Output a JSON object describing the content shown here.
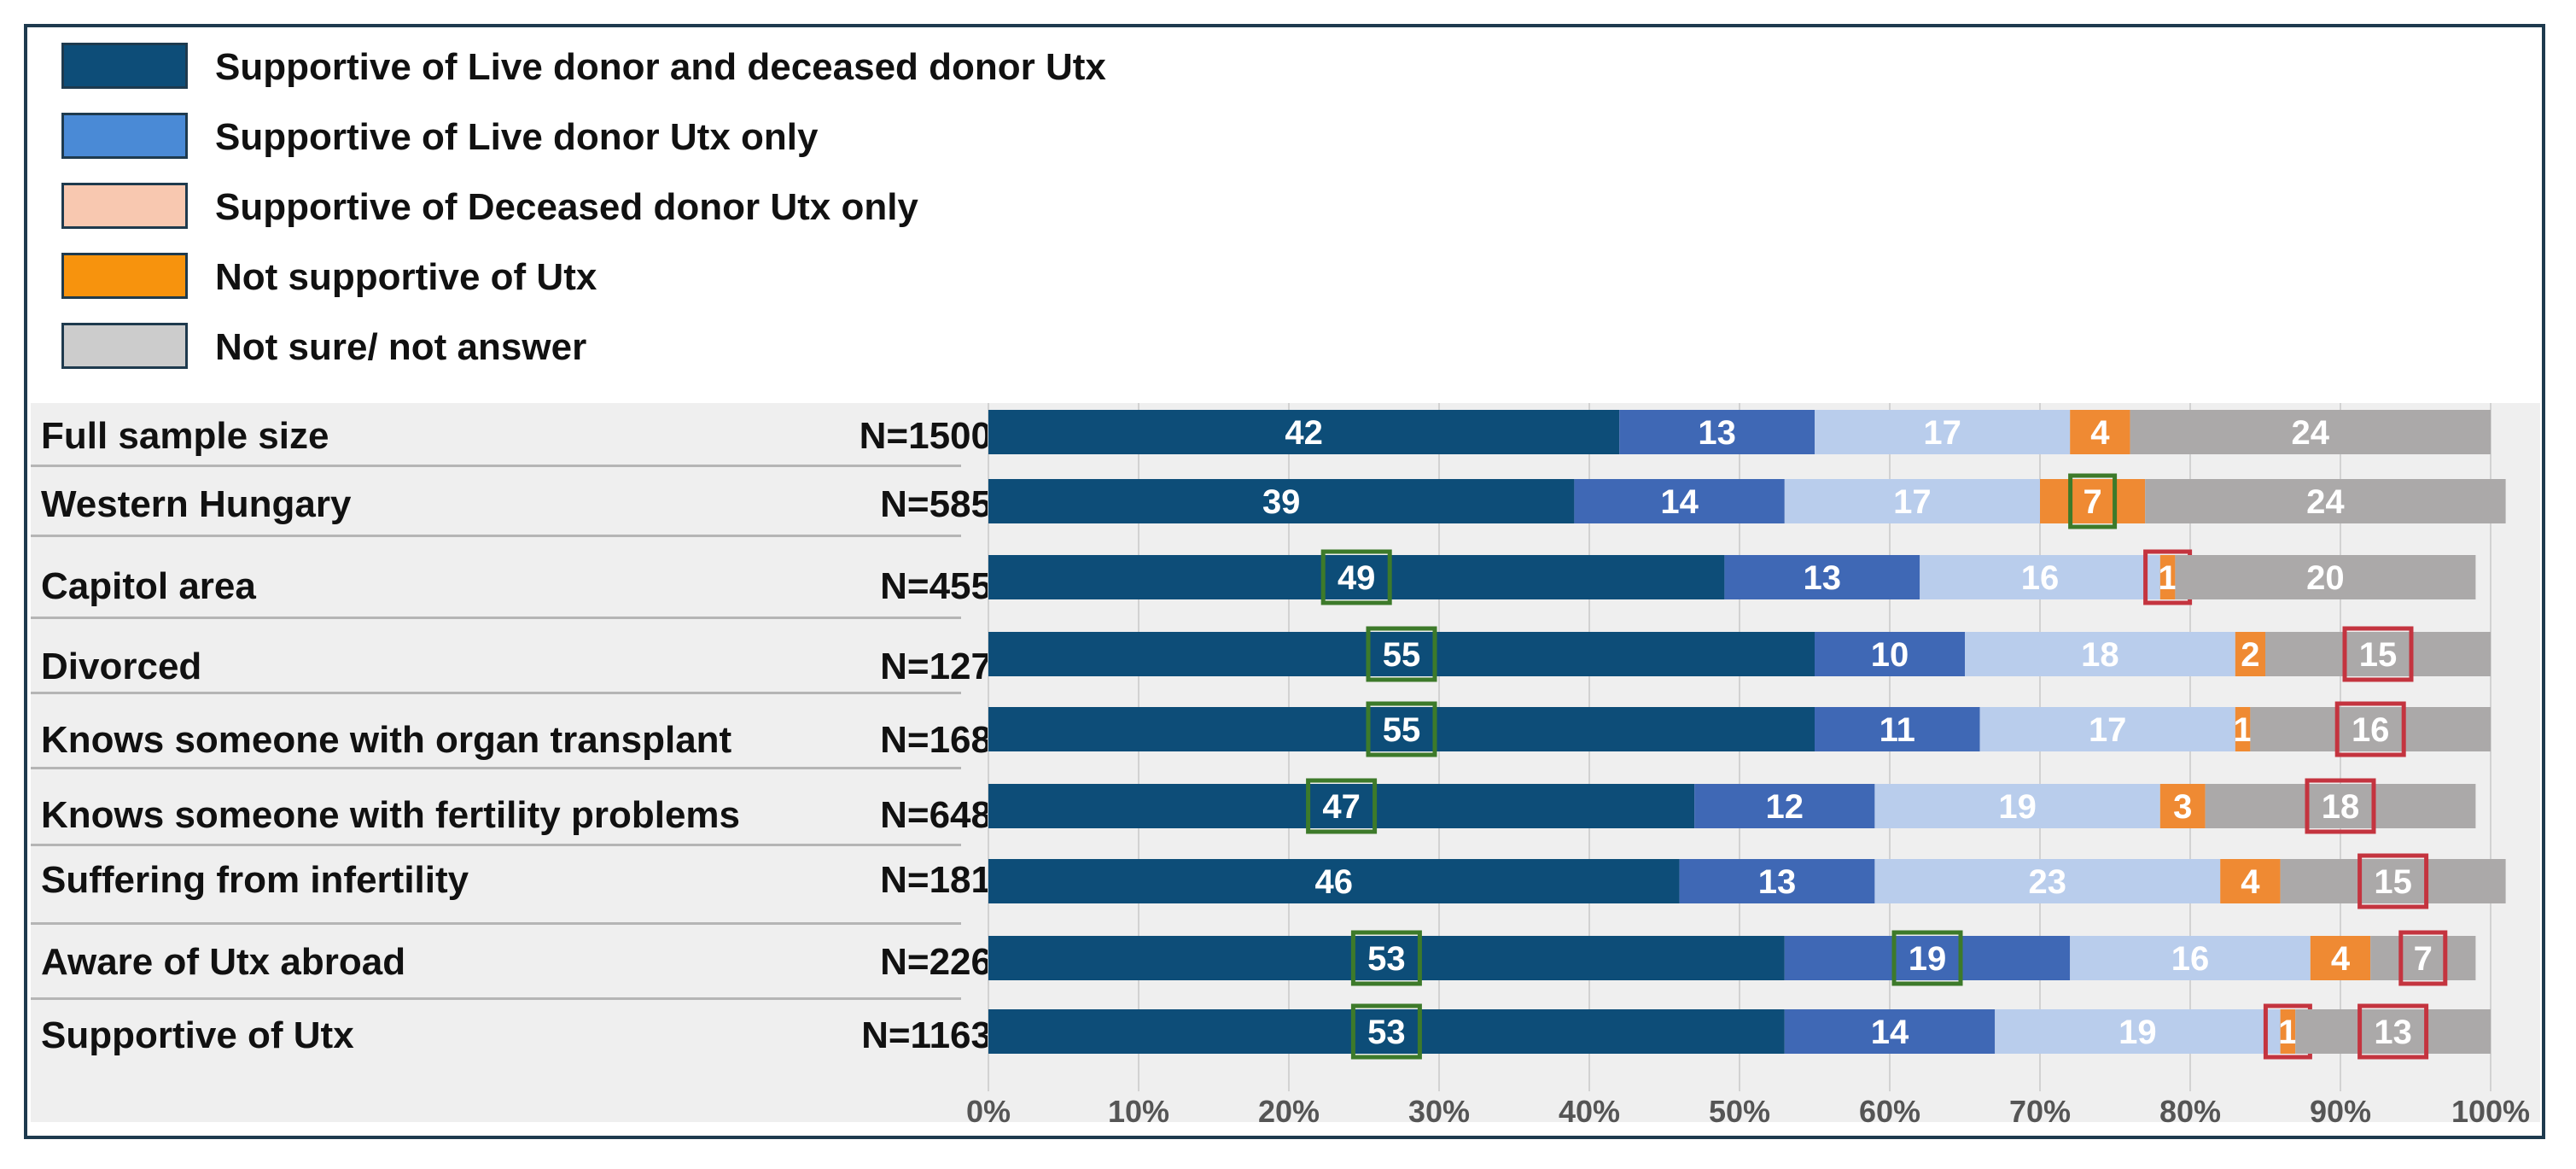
{
  "chart_data": {
    "type": "bar",
    "orientation": "horizontal",
    "stacked": true,
    "xlim": [
      0,
      100
    ],
    "x_ticks": [
      "0%",
      "10%",
      "20%",
      "30%",
      "40%",
      "50%",
      "60%",
      "70%",
      "80%",
      "90%",
      "100%"
    ],
    "legend_placement": "top",
    "grid": true,
    "categories": [
      {
        "label": "Full sample size",
        "n": "N=1500"
      },
      {
        "label": "Western Hungary",
        "n": "N=585"
      },
      {
        "label": "Capitol area",
        "n": "N=455"
      },
      {
        "label": "Divorced",
        "n": "N=127"
      },
      {
        "label": "Knows someone with organ transplant",
        "n": "N=168"
      },
      {
        "label": "Knows someone with fertility problems",
        "n": "N=648"
      },
      {
        "label": "Suffering from infertility",
        "n": "N=181"
      },
      {
        "label": "Aware of Utx abroad",
        "n": "N=226"
      },
      {
        "label": "Supportive of Utx",
        "n": "N=1163"
      }
    ],
    "series": [
      {
        "name": "Supportive of Live donor and deceased donor Utx",
        "color": "#0d4d78",
        "label_color": "#ffffff",
        "values": [
          42,
          39,
          49,
          55,
          55,
          47,
          46,
          53,
          53
        ]
      },
      {
        "name": "Supportive of Live donor Utx only",
        "color": "#3f68b5",
        "label_color": "#ffffff",
        "values": [
          13,
          14,
          13,
          10,
          11,
          12,
          13,
          19,
          14
        ]
      },
      {
        "name": "Supportive of Deceased donor Utx only",
        "color": "#b9cdec",
        "label_color": "#ffffff",
        "values": [
          17,
          17,
          16,
          18,
          17,
          19,
          23,
          16,
          19
        ]
      },
      {
        "name": "Not supportive of Utx",
        "color": "#ef8a33",
        "label_color": "#ffffff",
        "values": [
          4,
          7,
          1,
          2,
          1,
          3,
          4,
          4,
          1
        ]
      },
      {
        "name": "Not sure/ not answer",
        "color": "#aba9a9",
        "label_color": "#ffffff",
        "values": [
          24,
          24,
          20,
          15,
          16,
          18,
          15,
          7,
          13
        ]
      }
    ],
    "highlights": [
      {
        "row": 1,
        "series": 3,
        "kind": "higher"
      },
      {
        "row": 2,
        "series": 0,
        "kind": "higher"
      },
      {
        "row": 2,
        "series": 3,
        "kind": "lower"
      },
      {
        "row": 3,
        "series": 0,
        "kind": "higher"
      },
      {
        "row": 3,
        "series": 4,
        "kind": "lower"
      },
      {
        "row": 4,
        "series": 0,
        "kind": "higher"
      },
      {
        "row": 4,
        "series": 4,
        "kind": "lower"
      },
      {
        "row": 5,
        "series": 0,
        "kind": "higher"
      },
      {
        "row": 5,
        "series": 4,
        "kind": "lower"
      },
      {
        "row": 6,
        "series": 4,
        "kind": "lower"
      },
      {
        "row": 7,
        "series": 0,
        "kind": "higher"
      },
      {
        "row": 7,
        "series": 1,
        "kind": "higher"
      },
      {
        "row": 7,
        "series": 4,
        "kind": "lower"
      },
      {
        "row": 8,
        "series": 0,
        "kind": "higher"
      },
      {
        "row": 8,
        "series": 3,
        "kind": "lower"
      },
      {
        "row": 8,
        "series": 4,
        "kind": "lower"
      }
    ],
    "highlight_colors": {
      "higher": "#3d7a2a",
      "lower": "#c4343f"
    }
  }
}
